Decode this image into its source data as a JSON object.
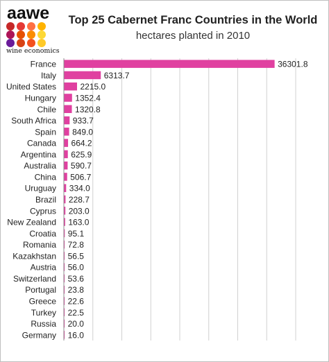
{
  "logo": {
    "wordmark": "aawe",
    "subtitle": "wine economics",
    "dot_colors": [
      "#c62828",
      "#e53935",
      "#ff7043",
      "#ffb300",
      "#ad1457",
      "#e65100",
      "#fb8c00",
      "#fdd835",
      "#6a1b9a",
      "#d84315",
      "#f4511e",
      "#ffca28"
    ]
  },
  "chart_data": {
    "type": "bar",
    "orientation": "horizontal",
    "title": "Top 25 Cabernet Franc Countries in the World",
    "subtitle": "hectares planted in 2010",
    "bar_color": "#e040a0",
    "grid": true,
    "xlim": [
      0,
      40000
    ],
    "categories": [
      "France",
      "Italy",
      "United States",
      "Hungary",
      "Chile",
      "South Africa",
      "Spain",
      "Canada",
      "Argentina",
      "Australia",
      "China",
      "Uruguay",
      "Brazil",
      "Cyprus",
      "New Zealand",
      "Croatia",
      "Romania",
      "Kazakhstan",
      "Austria",
      "Switzerland",
      "Portugal",
      "Greece",
      "Turkey",
      "Russia",
      "Germany"
    ],
    "values": [
      36301.8,
      6313.7,
      2215.0,
      1352.4,
      1320.8,
      933.7,
      849.0,
      664.2,
      625.9,
      590.7,
      506.7,
      334.0,
      228.7,
      203.0,
      163.0,
      95.1,
      72.8,
      56.5,
      56.0,
      53.6,
      23.8,
      22.6,
      22.5,
      20.0,
      16.0
    ],
    "data_labels": [
      "36301.8",
      "6313.7",
      "2215.0",
      "1352.4",
      "1320.8",
      "933.7",
      "849.0",
      "664.2",
      "625.9",
      "590.7",
      "506.7",
      "334.0",
      "228.7",
      "203.0",
      "163.0",
      "95.1",
      "72.8",
      "56.5",
      "56.0",
      "53.6",
      "23.8",
      "22.6",
      "22.5",
      "20.0",
      "16.0"
    ]
  }
}
